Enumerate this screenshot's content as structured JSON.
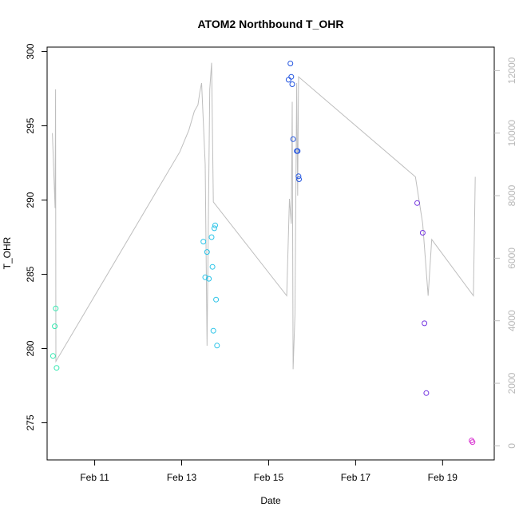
{
  "chart_data": {
    "type": "scatter",
    "title": "ATOM2 Northbound T_OHR",
    "xlabel": "Date",
    "ylabel": "T_OHR",
    "x_ticks": [
      {
        "date": "2012-02-11",
        "label": "Feb 11"
      },
      {
        "date": "2012-02-13",
        "label": "Feb 13"
      },
      {
        "date": "2012-02-15",
        "label": "Feb 15"
      },
      {
        "date": "2012-02-17",
        "label": "Feb 17"
      },
      {
        "date": "2012-02-19",
        "label": "Feb 19"
      }
    ],
    "xlim": [
      "2012-02-09T21:45",
      "2012-02-20T04:30"
    ],
    "y_left": {
      "ticks": [
        275,
        280,
        285,
        290,
        295,
        300
      ],
      "lim": [
        272.5,
        300.3
      ]
    },
    "y_right": {
      "ticks": [
        0,
        2000,
        4000,
        6000,
        8000,
        10000,
        12000
      ],
      "lim": [
        -450,
        12750
      ],
      "color": "#bebebe"
    },
    "points": [
      {
        "t": "2012-02-10T01:00",
        "y": 279.5,
        "color": "#33e8b0"
      },
      {
        "t": "2012-02-10T02:00",
        "y": 281.5,
        "color": "#33e8b0"
      },
      {
        "t": "2012-02-10T02:30",
        "y": 282.7,
        "color": "#33e8b0"
      },
      {
        "t": "2012-02-10T03:00",
        "y": 278.7,
        "color": "#33e8b0"
      },
      {
        "t": "2012-02-13T12:00",
        "y": 287.2,
        "color": "#2cc4e8"
      },
      {
        "t": "2012-02-13T13:00",
        "y": 284.8,
        "color": "#2cc4e8"
      },
      {
        "t": "2012-02-13T14:00",
        "y": 286.5,
        "color": "#2cc4e8"
      },
      {
        "t": "2012-02-13T15:00",
        "y": 284.7,
        "color": "#2cc4e8"
      },
      {
        "t": "2012-02-13T16:30",
        "y": 287.5,
        "color": "#2cc4e8"
      },
      {
        "t": "2012-02-13T17:00",
        "y": 285.5,
        "color": "#2cc4e8"
      },
      {
        "t": "2012-02-13T17:30",
        "y": 281.2,
        "color": "#2cc4e8"
      },
      {
        "t": "2012-02-13T18:00",
        "y": 288.1,
        "color": "#2cc4e8"
      },
      {
        "t": "2012-02-13T18:30",
        "y": 288.3,
        "color": "#2cc4e8"
      },
      {
        "t": "2012-02-13T19:00",
        "y": 283.3,
        "color": "#2cc4e8"
      },
      {
        "t": "2012-02-13T19:30",
        "y": 280.2,
        "color": "#2cc4e8"
      },
      {
        "t": "2012-02-15T11:00",
        "y": 298.1,
        "color": "#2456e0"
      },
      {
        "t": "2012-02-15T12:00",
        "y": 299.2,
        "color": "#2456e0"
      },
      {
        "t": "2012-02-15T12:30",
        "y": 298.3,
        "color": "#2456e0"
      },
      {
        "t": "2012-02-15T13:00",
        "y": 297.8,
        "color": "#2456e0"
      },
      {
        "t": "2012-02-15T13:30",
        "y": 294.1,
        "color": "#2456e0"
      },
      {
        "t": "2012-02-15T15:30",
        "y": 293.3,
        "color": "#2456e0"
      },
      {
        "t": "2012-02-15T16:00",
        "y": 293.3,
        "color": "#2456e0"
      },
      {
        "t": "2012-02-15T16:30",
        "y": 291.6,
        "color": "#2456e0"
      },
      {
        "t": "2012-02-15T16:45",
        "y": 291.4,
        "color": "#2456e0"
      },
      {
        "t": "2012-02-18T10:00",
        "y": 289.8,
        "color": "#7434e0"
      },
      {
        "t": "2012-02-18T13:00",
        "y": 287.8,
        "color": "#7434e0"
      },
      {
        "t": "2012-02-18T14:00",
        "y": 281.7,
        "color": "#7434e0"
      },
      {
        "t": "2012-02-18T15:00",
        "y": 277.0,
        "color": "#7434e0"
      },
      {
        "t": "2012-02-19T16:00",
        "y": 273.8,
        "color": "#d82ed0"
      },
      {
        "t": "2012-02-19T16:30",
        "y": 273.7,
        "color": "#d82ed0"
      }
    ],
    "gray_line_right_axis": [
      {
        "t": "2012-02-10T00:40",
        "v": 10000
      },
      {
        "t": "2012-02-10T02:10",
        "v": 7600
      },
      {
        "t": "2012-02-10T02:25",
        "v": 11400
      },
      {
        "t": "2012-02-10T02:35",
        "v": 2700
      },
      {
        "t": "2012-02-12T23:00",
        "v": 9400
      },
      {
        "t": "2012-02-13T04:00",
        "v": 10100
      },
      {
        "t": "2012-02-13T07:00",
        "v": 10700
      },
      {
        "t": "2012-02-13T09:00",
        "v": 10900
      },
      {
        "t": "2012-02-13T10:00",
        "v": 11300
      },
      {
        "t": "2012-02-13T11:00",
        "v": 11600
      },
      {
        "t": "2012-02-13T13:00",
        "v": 9000
      },
      {
        "t": "2012-02-13T14:00",
        "v": 3200
      },
      {
        "t": "2012-02-13T15:30",
        "v": 11400
      },
      {
        "t": "2012-02-13T16:30",
        "v": 12250
      },
      {
        "t": "2012-02-13T17:30",
        "v": 7800
      },
      {
        "t": "2012-02-15T10:00",
        "v": 4800
      },
      {
        "t": "2012-02-15T11:30",
        "v": 7900
      },
      {
        "t": "2012-02-15T12:30",
        "v": 7100
      },
      {
        "t": "2012-02-15T13:00",
        "v": 11000
      },
      {
        "t": "2012-02-15T13:30",
        "v": 2450
      },
      {
        "t": "2012-02-15T14:30",
        "v": 4200
      },
      {
        "t": "2012-02-15T15:30",
        "v": 11600
      },
      {
        "t": "2012-02-15T16:00",
        "v": 8000
      },
      {
        "t": "2012-02-15T16:30",
        "v": 11800
      },
      {
        "t": "2012-02-18T09:00",
        "v": 8600
      },
      {
        "t": "2012-02-18T13:00",
        "v": 7100
      },
      {
        "t": "2012-02-18T16:00",
        "v": 4800
      },
      {
        "t": "2012-02-18T18:00",
        "v": 6600
      },
      {
        "t": "2012-02-19T17:00",
        "v": 4800
      },
      {
        "t": "2012-02-19T18:00",
        "v": 8600
      }
    ],
    "grid": false,
    "legend": "none"
  }
}
